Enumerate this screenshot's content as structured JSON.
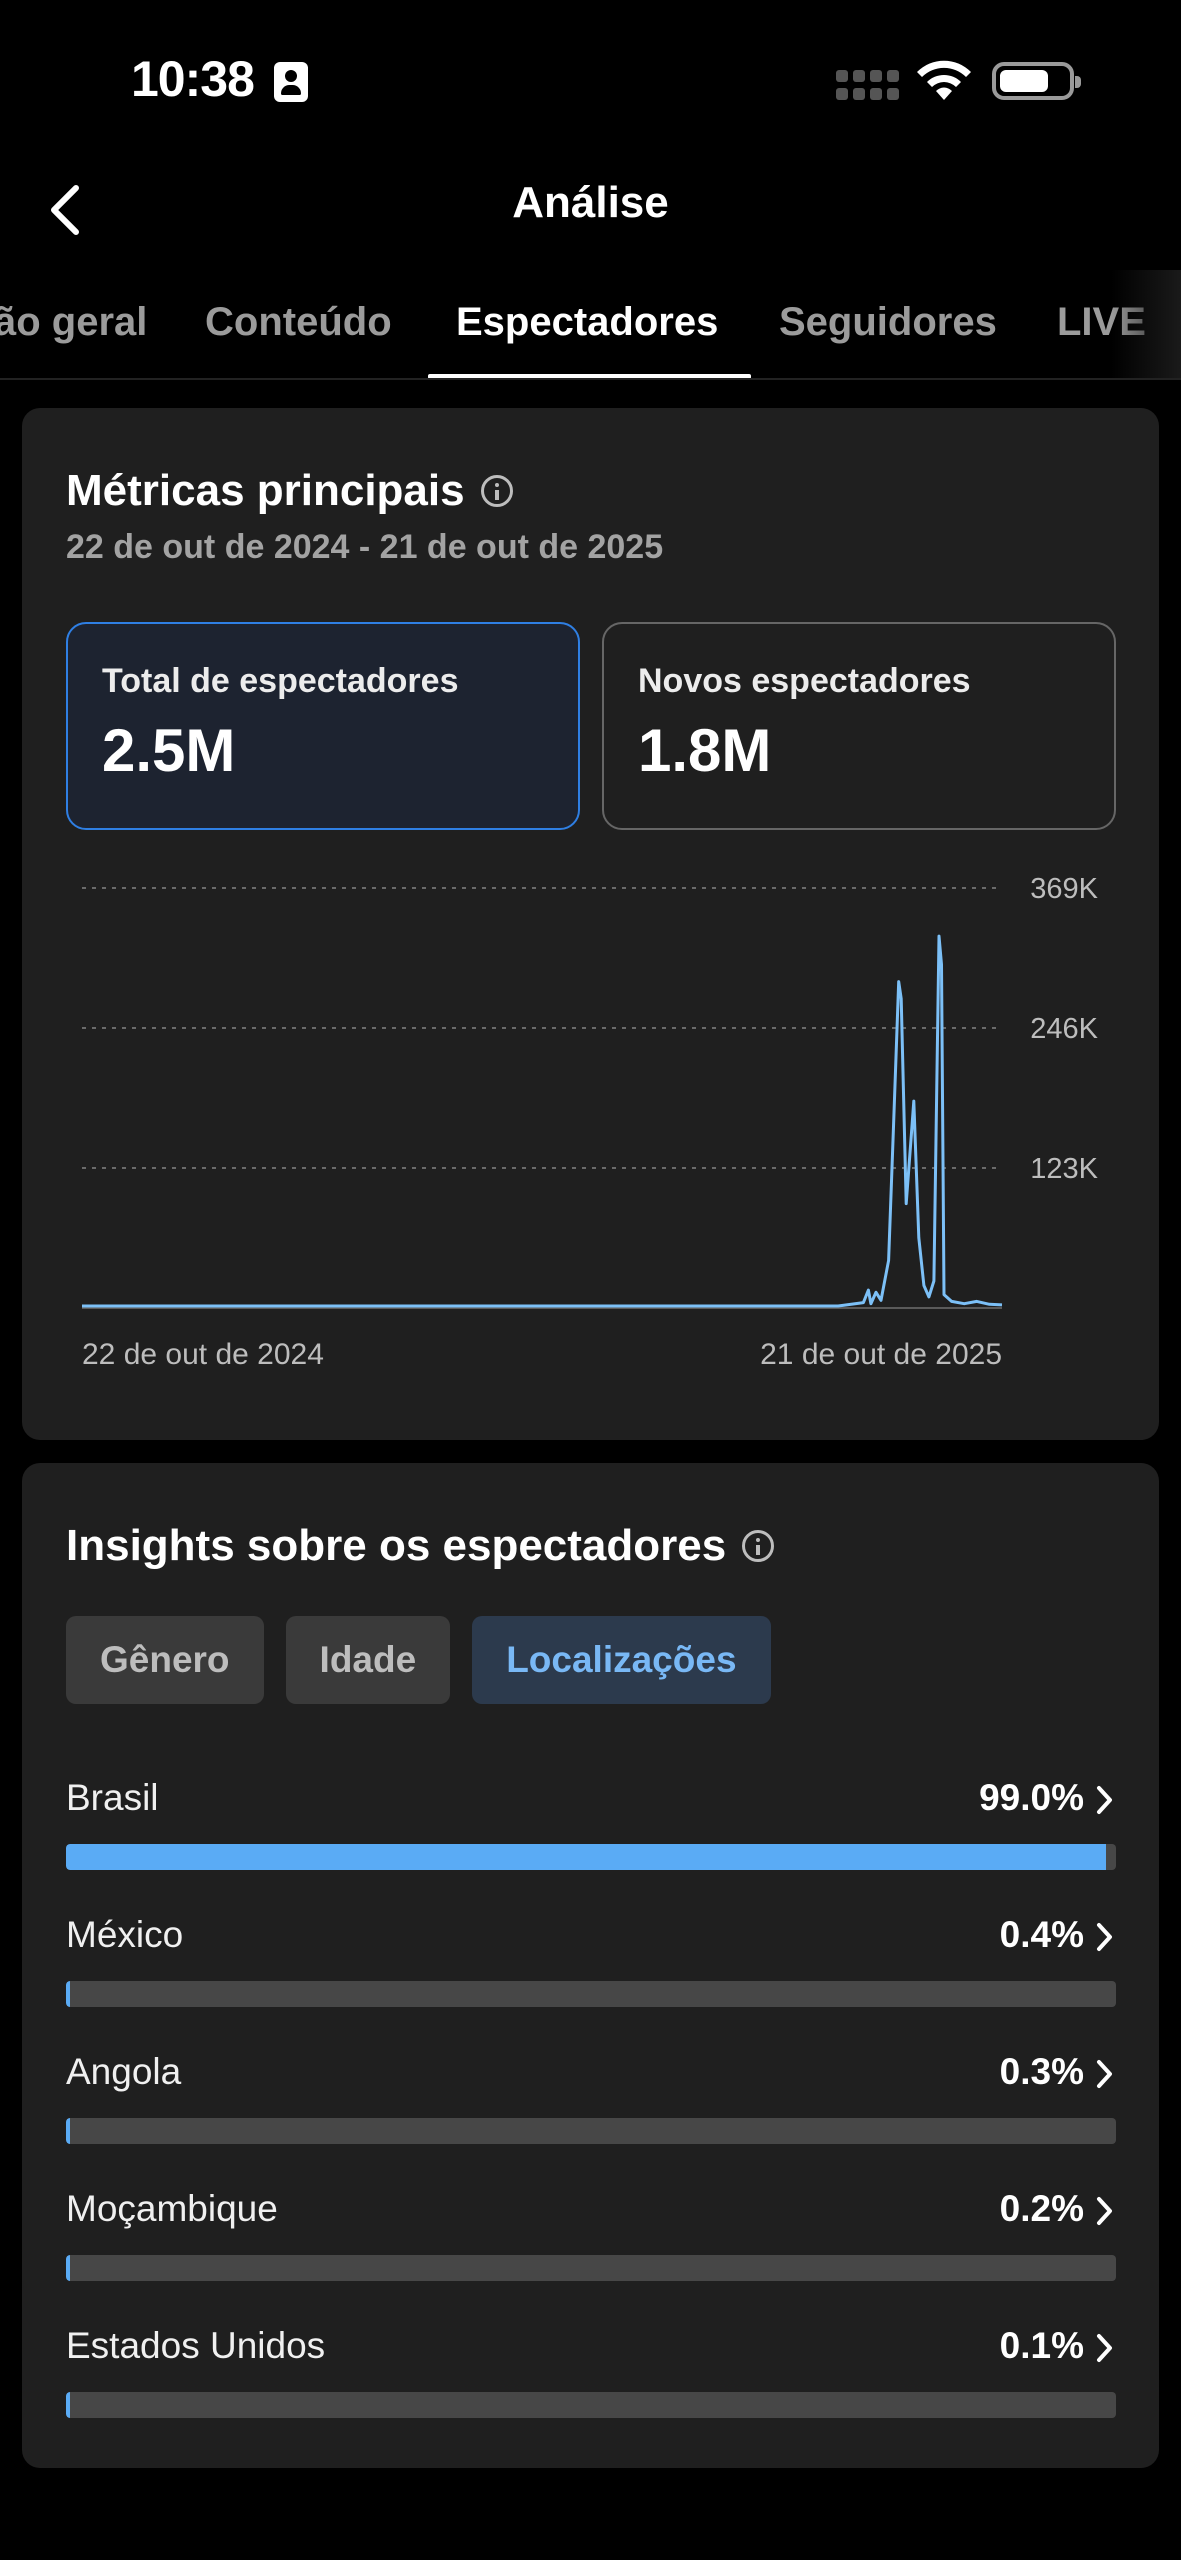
{
  "status_bar": {
    "time": "10:38"
  },
  "header": {
    "title": "Análise"
  },
  "tabs": [
    {
      "label": "Visão geral",
      "visible": "ão geral"
    },
    {
      "label": "Conteúdo"
    },
    {
      "label": "Espectadores",
      "active": true
    },
    {
      "label": "Seguidores"
    },
    {
      "label": "LIVE"
    }
  ],
  "main_metrics": {
    "title": "Métricas principais",
    "date_range": "22 de out de 2024 - 21 de out de 2025",
    "cards": [
      {
        "label": "Total de espectadores",
        "value": "2.5M",
        "selected": true
      },
      {
        "label": "Novos espectadores",
        "value": "1.8M",
        "selected": false
      }
    ]
  },
  "chart_data": {
    "type": "line",
    "x_start_label": "22 de out de 2024",
    "x_end_label": "21 de out de 2025",
    "y_ticks": [
      "369K",
      "246K",
      "123K"
    ],
    "y_tick_values": [
      369000,
      246000,
      123000
    ],
    "ylim": [
      0,
      369000
    ],
    "grid": true,
    "color": "#7cc0f7",
    "series": [
      {
        "points": [
          [
            0,
            0
          ],
          [
            150,
            0
          ],
          [
            300,
            0
          ],
          [
            310,
            3000
          ],
          [
            312,
            14000
          ],
          [
            313,
            2000
          ],
          [
            315,
            12000
          ],
          [
            317,
            5000
          ],
          [
            320,
            40000
          ],
          [
            322,
            160000
          ],
          [
            324,
            285000
          ],
          [
            325,
            270000
          ],
          [
            327,
            90000
          ],
          [
            329,
            150000
          ],
          [
            330,
            180000
          ],
          [
            332,
            60000
          ],
          [
            334,
            18000
          ],
          [
            336,
            8000
          ],
          [
            338,
            22000
          ],
          [
            340,
            325000
          ],
          [
            341,
            300000
          ],
          [
            342,
            10000
          ],
          [
            345,
            4000
          ],
          [
            350,
            2000
          ],
          [
            355,
            4000
          ],
          [
            360,
            1500
          ],
          [
            365,
            1000
          ]
        ]
      }
    ]
  },
  "insights": {
    "title": "Insights sobre os espectadores",
    "tabs": [
      {
        "label": "Gênero"
      },
      {
        "label": "Idade"
      },
      {
        "label": "Localizações",
        "active": true
      }
    ],
    "locations": [
      {
        "name": "Brasil",
        "pct_label": "99.0%",
        "value": 99.0
      },
      {
        "name": "México",
        "pct_label": "0.4%",
        "value": 0.4
      },
      {
        "name": "Angola",
        "pct_label": "0.3%",
        "value": 0.3
      },
      {
        "name": "Moçambique",
        "pct_label": "0.2%",
        "value": 0.2
      },
      {
        "name": "Estados Unidos",
        "pct_label": "0.1%",
        "value": 0.1
      }
    ]
  }
}
